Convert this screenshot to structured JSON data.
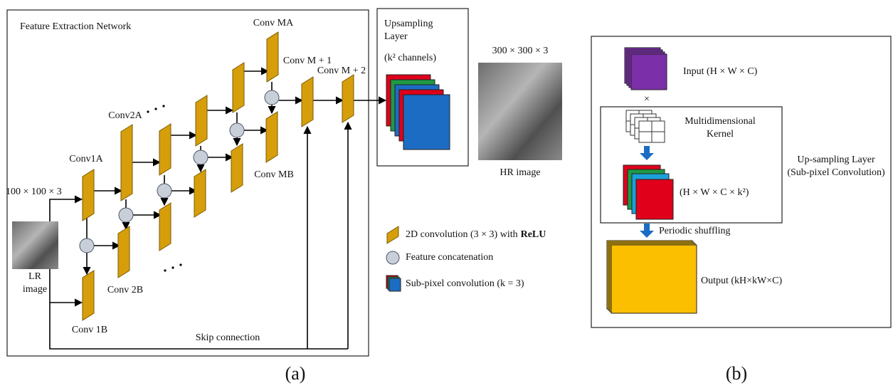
{
  "panel_a": {
    "title": "Feature Extraction Network",
    "input_size": "100 × 100 × 3",
    "input_label": [
      "LR",
      "image"
    ],
    "blocks": {
      "conv1a": "Conv1A",
      "conv1b": "Conv 1B",
      "conv2a": "Conv2A",
      "conv2b": "Conv 2B",
      "conv_ma": "Conv MA",
      "conv_mb": "Conv MB",
      "conv_m1": "Conv M + 1",
      "conv_m2": "Conv M + 2"
    },
    "skip": "Skip connection",
    "caption": "(a)"
  },
  "upsampling": {
    "title": [
      "Upsampling",
      "Layer"
    ],
    "channels": "(k² channels)"
  },
  "output": {
    "size": "300 × 300 × 3",
    "label": "HR image"
  },
  "legend": {
    "conv": "2D convolution (3 × 3) with",
    "conv_bold": "ReLU",
    "concat": "Feature concatenation",
    "subpixel": "Sub-pixel convolution (k = 3)"
  },
  "panel_b": {
    "input": "Input (H × W × C)",
    "times": "×",
    "kernel": [
      "Multidimensional",
      "Kernel"
    ],
    "feature": "(H × W × C × k²)",
    "shuffle": "Periodic shuffling",
    "output": "Output (kH×kW×C)",
    "title": [
      "Up-sampling Layer",
      "(Sub-pixel Convolution)"
    ],
    "caption": "(b)"
  }
}
